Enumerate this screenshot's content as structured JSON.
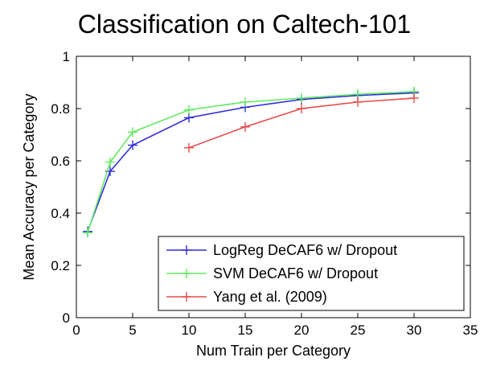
{
  "chart_data": {
    "type": "line",
    "title": "Classification on Caltech-101",
    "xlabel": "Num Train per Category",
    "ylabel": "Mean Accuracy per Category",
    "xlim": [
      0,
      35
    ],
    "ylim": [
      0,
      1
    ],
    "xticks": [
      0,
      5,
      10,
      15,
      20,
      25,
      30,
      35
    ],
    "yticks": [
      0,
      0.2,
      0.4,
      0.6,
      0.8,
      1
    ],
    "grid": false,
    "legend_position": "bottom-right",
    "series": [
      {
        "name": "LogReg DeCAF6 w/ Dropout",
        "color": "#2f2fd6",
        "x": [
          1,
          3,
          5,
          10,
          15,
          20,
          25,
          30
        ],
        "y": [
          0.33,
          0.56,
          0.66,
          0.765,
          0.805,
          0.835,
          0.85,
          0.86
        ]
      },
      {
        "name": "SVM DeCAF6 w/ Dropout",
        "color": "#62e862",
        "x": [
          1,
          3,
          5,
          10,
          15,
          20,
          25,
          30
        ],
        "y": [
          0.325,
          0.595,
          0.71,
          0.795,
          0.825,
          0.84,
          0.855,
          0.865
        ]
      },
      {
        "name": "Yang et al. (2009)",
        "color": "#e84c4c",
        "x": [
          10,
          15,
          20,
          25,
          30
        ],
        "y": [
          0.65,
          0.73,
          0.8,
          0.825,
          0.84
        ]
      }
    ]
  }
}
